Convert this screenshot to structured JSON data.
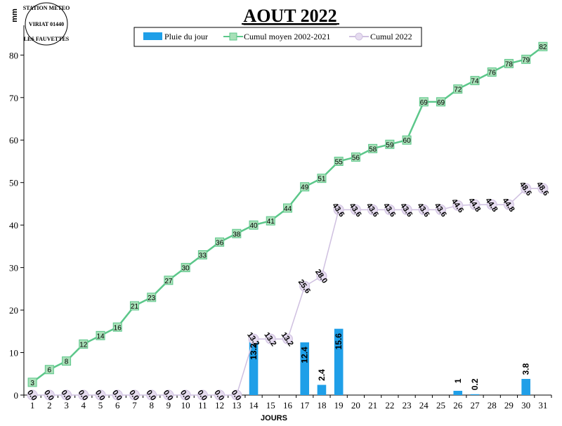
{
  "colors": {
    "bar": "#1f9fe8",
    "moyen_line": "#5cc78a",
    "moyen_marker_fill": "#a8e0b8",
    "cum_line": "#cfc0e0",
    "cum_marker_fill": "#e6dcf0"
  },
  "stamp": {
    "top": "STATION METEO",
    "middle": "VIRIAT 01440",
    "bottom": "LES FAUVETTES"
  },
  "chart_data": {
    "type": "bar+line",
    "title": "AOUT 2022",
    "ylabel": "mm",
    "xlabel": "JOURS",
    "ylim": [
      0,
      87
    ],
    "yticks": [
      0,
      10,
      20,
      30,
      40,
      50,
      60,
      70,
      80
    ],
    "grid": false,
    "legend_position": "top-center",
    "categories": [
      "1",
      "2",
      "3",
      "4",
      "5",
      "6",
      "7",
      "8",
      "9",
      "10",
      "11",
      "12",
      "13",
      "14",
      "15",
      "16",
      "17",
      "18",
      "19",
      "20",
      "21",
      "22",
      "23",
      "24",
      "25",
      "26",
      "27",
      "28",
      "29",
      "30",
      "31"
    ],
    "series": [
      {
        "name": "Pluie du jour",
        "kind": "bar",
        "values": [
          0,
          0,
          0,
          0,
          0,
          0,
          0,
          0,
          0,
          0,
          0,
          0,
          0,
          13.2,
          0,
          0,
          12.4,
          2.4,
          15.6,
          0,
          0,
          0,
          0,
          0,
          0,
          1,
          0.2,
          0,
          0,
          3.8,
          0
        ],
        "labels": [
          "",
          "",
          "",
          "",
          "",
          "",
          "",
          "",
          "",
          "",
          "",
          "",
          "",
          "13.2",
          "",
          "",
          "12.4",
          "2.4",
          "15.6",
          "",
          "",
          "",
          "",
          "",
          "",
          "1",
          "0.2",
          "",
          "",
          "3.8",
          ""
        ]
      },
      {
        "name": "Cumul moyen 2002-2021",
        "kind": "line",
        "values": [
          3,
          6,
          8,
          12,
          14,
          16,
          21,
          23,
          27,
          30,
          33,
          36,
          38,
          40,
          41,
          44,
          49,
          51,
          55,
          56,
          58,
          59,
          60,
          69,
          69,
          72,
          74,
          76,
          78,
          79,
          82
        ],
        "labels": [
          "3",
          "6",
          "8",
          "12",
          "14",
          "16",
          "21",
          "23",
          "27",
          "30",
          "33",
          "36",
          "38",
          "40",
          "41",
          "44",
          "49",
          "51",
          "55",
          "56",
          "58",
          "59",
          "60",
          "69",
          "69",
          "72",
          "74",
          "76",
          "78",
          "79",
          "82"
        ]
      },
      {
        "name": "Cumul 2022",
        "kind": "line",
        "values": [
          0,
          0,
          0,
          0,
          0,
          0,
          0,
          0,
          0,
          0,
          0,
          0,
          0,
          13.2,
          13.2,
          13.2,
          25.6,
          28.0,
          43.6,
          43.6,
          43.6,
          43.6,
          43.6,
          43.6,
          43.6,
          44.6,
          44.8,
          44.8,
          44.8,
          48.6,
          48.6
        ],
        "labels": [
          "0.0",
          "0.0",
          "0.0",
          "0.0",
          "0.0",
          "0.0",
          "0.0",
          "0.0",
          "0.0",
          "0.0",
          "0.0",
          "0.0",
          "0.0",
          "13.2",
          "13.2",
          "13.2",
          "25.6",
          "28.0",
          "43.6",
          "43.6",
          "43.6",
          "43.6",
          "43.6",
          "43.6",
          "43.6",
          "44.6",
          "44.8",
          "44.8",
          "44.8",
          "48.6",
          "48.6"
        ]
      }
    ]
  }
}
